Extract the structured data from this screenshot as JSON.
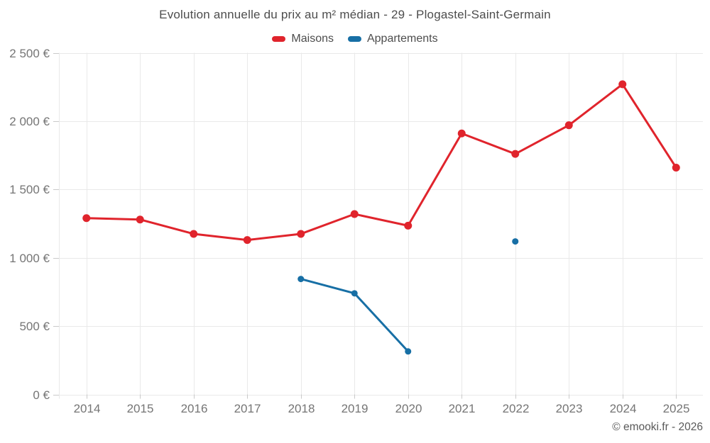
{
  "title": "Evolution annuelle du prix au m² médian - 29 - Plogastel-Saint-Germain",
  "footer": {
    "copyright": "© emooki.fr - 2026"
  },
  "colors": {
    "maisons": "#e0242c",
    "appartements": "#176fa5",
    "grid": "#e9e9e9",
    "tick": "#c9c9c9",
    "axis_label": "#757575",
    "title_text": "#4d4d4d",
    "footer_text": "#595959"
  },
  "chart_data": {
    "type": "line",
    "title": "Evolution annuelle du prix au m² médian - 29 - Plogastel-Saint-Germain",
    "categories": [
      "2014",
      "2015",
      "2016",
      "2017",
      "2018",
      "2019",
      "2020",
      "2021",
      "2022",
      "2023",
      "2024",
      "2025"
    ],
    "series": [
      {
        "name": "Maisons",
        "color": "#e0242c",
        "values": [
          1290,
          1280,
          1175,
          1130,
          1175,
          1320,
          1235,
          1910,
          1760,
          1970,
          2270,
          1660
        ]
      },
      {
        "name": "Appartements",
        "color": "#176fa5",
        "values": [
          null,
          null,
          null,
          null,
          845,
          740,
          315,
          null,
          1120,
          null,
          null,
          null
        ]
      }
    ],
    "xlabel": "",
    "ylabel": "",
    "ylim": [
      0,
      2500
    ],
    "yticks": [
      0,
      500,
      1000,
      1500,
      2000,
      2500
    ],
    "yticklabels": [
      "0 €",
      "500 €",
      "1 000 €",
      "1 500 €",
      "2 000 €",
      "2 500 €"
    ],
    "grid": true,
    "legend_position": "top"
  }
}
